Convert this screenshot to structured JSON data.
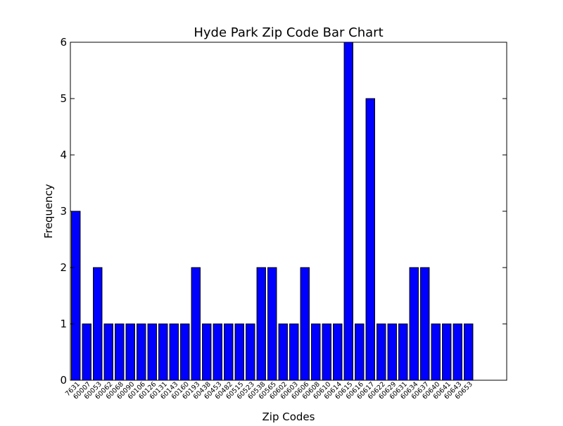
{
  "chart_data": {
    "type": "bar",
    "title": "Hyde Park Zip Code Bar Chart",
    "xlabel": "Zip Codes",
    "ylabel": "Frequency",
    "ylim": [
      0,
      6
    ],
    "yticks": [
      "0",
      "1",
      "2",
      "3",
      "4",
      "5",
      "6"
    ],
    "bar_color": "#0000ff",
    "categories": [
      "7631",
      "60007",
      "60053",
      "60062",
      "60068",
      "60090",
      "60106",
      "60126",
      "60131",
      "60143",
      "60160",
      "60193",
      "60438",
      "60453",
      "60482",
      "60515",
      "60523",
      "60538",
      "60565",
      "60602",
      "60603",
      "60606",
      "60608",
      "60610",
      "60614",
      "60615",
      "60616",
      "60617",
      "60622",
      "60629",
      "60631",
      "60634",
      "60637",
      "60640",
      "60641",
      "60643",
      "60653"
    ],
    "values": [
      3,
      1,
      2,
      1,
      1,
      1,
      1,
      1,
      1,
      1,
      1,
      2,
      1,
      1,
      1,
      1,
      1,
      2,
      2,
      1,
      1,
      2,
      1,
      1,
      1,
      6,
      1,
      5,
      1,
      1,
      1,
      2,
      2,
      1,
      1,
      1,
      1
    ],
    "grid": false,
    "legend": "none"
  }
}
